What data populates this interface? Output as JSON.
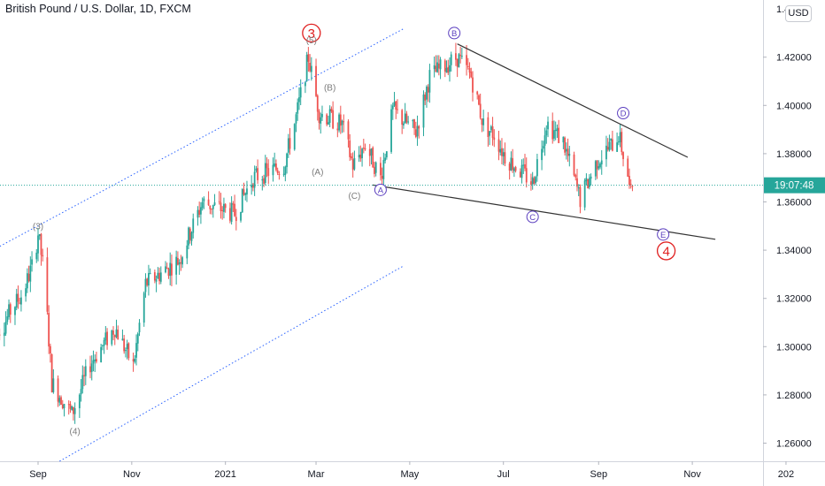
{
  "title": "British Pound / U.S. Dollar, 1D, FXCM",
  "currency": "USD",
  "price_tag": "19:07:48",
  "colors": {
    "up": "#26a69a",
    "down": "#ef5350",
    "channel": "#2962ff",
    "trendline": "#333333",
    "wave_major": "#e02020",
    "wave_minor": "#7b7b7b",
    "wave_abc": "#5b3fbf",
    "price_line": "#26a69a"
  },
  "chart_data": {
    "type": "candlestick",
    "symbol": "GBPUSD",
    "interval": "1D",
    "source": "FXCM",
    "ylim": [
      1.2525,
      1.4425
    ],
    "y_ticks": [
      "1.26000",
      "1.28000",
      "1.30000",
      "1.32000",
      "1.34000",
      "1.36000",
      "1.38000",
      "1.40000",
      "1.42000"
    ],
    "y_tick_values": [
      1.26,
      1.28,
      1.3,
      1.32,
      1.34,
      1.36,
      1.38,
      1.4,
      1.42
    ],
    "y_top_partial": "1.4",
    "x_ticks": [
      "Sep",
      "Nov",
      "2021",
      "Mar",
      "May",
      "Jul",
      "Sep",
      "Nov",
      "202"
    ],
    "x_tick_dates": [
      "2020-09-01",
      "2020-11-01",
      "2021-01-01",
      "2021-03-01",
      "2021-05-01",
      "2021-07-01",
      "2021-09-01",
      "2021-11-01",
      "2022-01-01"
    ],
    "last_price": 1.3669,
    "price_path": [
      [
        "2020-08-01",
        1.312
      ],
      [
        "2020-08-08",
        1.307
      ],
      [
        "2020-08-15",
        1.316
      ],
      [
        "2020-08-22",
        1.322
      ],
      [
        "2020-08-29",
        1.335
      ],
      [
        "2020-09-01",
        1.347
      ],
      [
        "2020-09-05",
        1.33
      ],
      [
        "2020-09-10",
        1.285
      ],
      [
        "2020-09-23",
        1.272
      ],
      [
        "2020-10-05",
        1.293
      ],
      [
        "2020-10-21",
        1.308
      ],
      [
        "2020-11-02",
        1.292
      ],
      [
        "2020-11-10",
        1.326
      ],
      [
        "2020-12-02",
        1.336
      ],
      [
        "2020-12-17",
        1.36
      ],
      [
        "2021-01-07",
        1.355
      ],
      [
        "2021-01-19",
        1.37
      ],
      [
        "2021-02-08",
        1.375
      ],
      [
        "2021-02-16",
        1.395
      ],
      [
        "2021-02-24",
        1.42
      ],
      [
        "2021-03-03",
        1.397
      ],
      [
        "2021-03-18",
        1.392
      ],
      [
        "2021-03-25",
        1.375
      ],
      [
        "2021-04-02",
        1.384
      ],
      [
        "2021-04-12",
        1.37
      ],
      [
        "2021-04-20",
        1.398
      ],
      [
        "2021-05-05",
        1.389
      ],
      [
        "2021-05-14",
        1.412
      ],
      [
        "2021-06-01",
        1.42
      ],
      [
        "2021-06-10",
        1.412
      ],
      [
        "2021-06-18",
        1.392
      ],
      [
        "2021-06-25",
        1.388
      ],
      [
        "2021-07-02",
        1.379
      ],
      [
        "2021-07-20",
        1.368
      ],
      [
        "2021-07-29",
        1.393
      ],
      [
        "2021-08-09",
        1.385
      ],
      [
        "2021-08-20",
        1.361
      ],
      [
        "2021-08-31",
        1.377
      ],
      [
        "2021-09-10",
        1.384
      ],
      [
        "2021-09-14",
        1.388
      ],
      [
        "2021-09-20",
        1.371
      ],
      [
        "2021-09-23",
        1.367
      ]
    ],
    "annotations": [
      {
        "label": "3",
        "style": "major",
        "date": "2021-02-26",
        "price": 1.43
      },
      {
        "label": "(5)",
        "style": "minor",
        "date": "2021-02-26",
        "price": 1.427
      },
      {
        "label": "(B)",
        "style": "minor",
        "date": "2021-03-10",
        "price": 1.4075
      },
      {
        "label": "(A)",
        "style": "minor",
        "date": "2021-03-02",
        "price": 1.3725
      },
      {
        "label": "(C)",
        "style": "minor",
        "date": "2021-03-26",
        "price": 1.3625
      },
      {
        "label": "(3)",
        "style": "minor",
        "date": "2020-09-01",
        "price": 1.35
      },
      {
        "label": "(4)",
        "style": "minor",
        "date": "2020-09-25",
        "price": 1.265
      },
      {
        "label": "B",
        "style": "abc",
        "date": "2021-05-30",
        "price": 1.43
      },
      {
        "label": "A",
        "style": "abc",
        "date": "2021-04-12",
        "price": 1.365
      },
      {
        "label": "C",
        "style": "abc",
        "date": "2021-07-20",
        "price": 1.3538
      },
      {
        "label": "D",
        "style": "abc",
        "date": "2021-09-17",
        "price": 1.3968
      },
      {
        "label": "E",
        "style": "abc",
        "date": "2021-10-13",
        "price": 1.3465
      },
      {
        "label": "4",
        "style": "major",
        "date": "2021-10-15",
        "price": 1.3397
      }
    ],
    "trendlines": [
      {
        "name": "upper",
        "from": [
          "2021-06-01",
          1.4255
        ],
        "to": [
          "2021-10-29",
          1.3785
        ]
      },
      {
        "name": "lower",
        "from": [
          "2021-04-07",
          1.367
        ],
        "to": [
          "2021-11-16",
          1.3445
        ]
      }
    ],
    "channel": [
      {
        "name": "upper",
        "from": [
          "2020-08-01",
          1.3395
        ],
        "to": [
          "2021-04-27",
          1.4318
        ]
      },
      {
        "name": "lower",
        "from": [
          "2020-09-15",
          1.2525
        ],
        "to": [
          "2021-04-27",
          1.3335
        ]
      }
    ]
  }
}
